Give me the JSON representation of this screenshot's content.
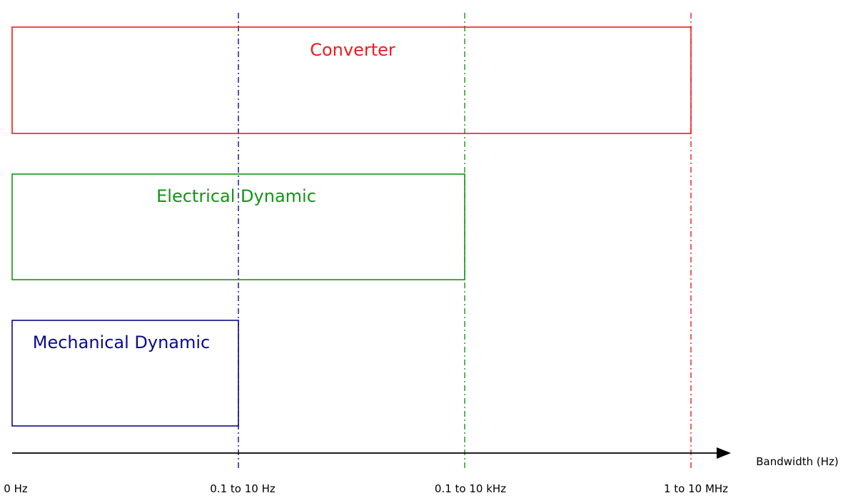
{
  "blocks": {
    "converter": {
      "label": "Converter",
      "color": "#ee1c1c"
    },
    "electrical": {
      "label": "Electrical Dynamic",
      "color": "#149414"
    },
    "mechanical": {
      "label": "Mechanical Dynamic",
      "color": "#0a0a8c"
    }
  },
  "axis": {
    "label": "Bandwidth (Hz)",
    "color": "#000000"
  },
  "ticks": [
    {
      "label": "0 Hz"
    },
    {
      "label": "0.1 to 10 Hz",
      "color": "#0a0a8c"
    },
    {
      "label": "0.1 to 10 kHz",
      "color": "#149414"
    },
    {
      "label": "1 to 10 MHz",
      "color": "#ee1c1c"
    }
  ]
}
